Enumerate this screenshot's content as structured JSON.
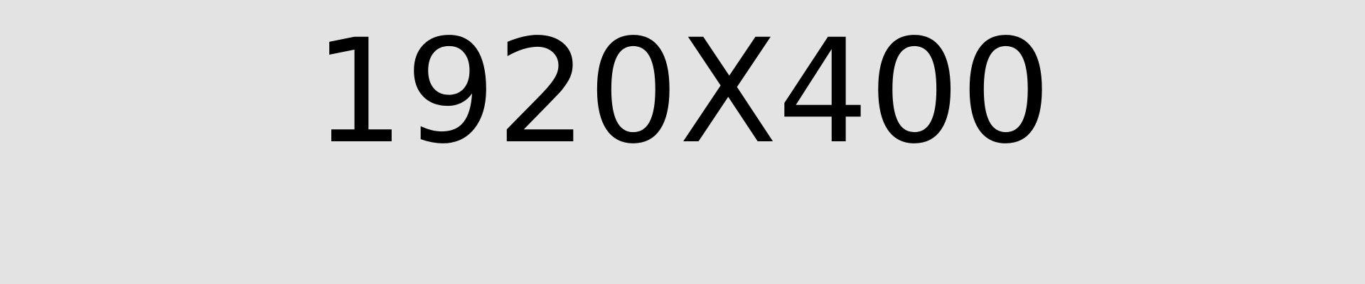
{
  "placeholder": {
    "label": "1920X400",
    "background_color": "#e3e3e3",
    "text_color": "#000000"
  }
}
